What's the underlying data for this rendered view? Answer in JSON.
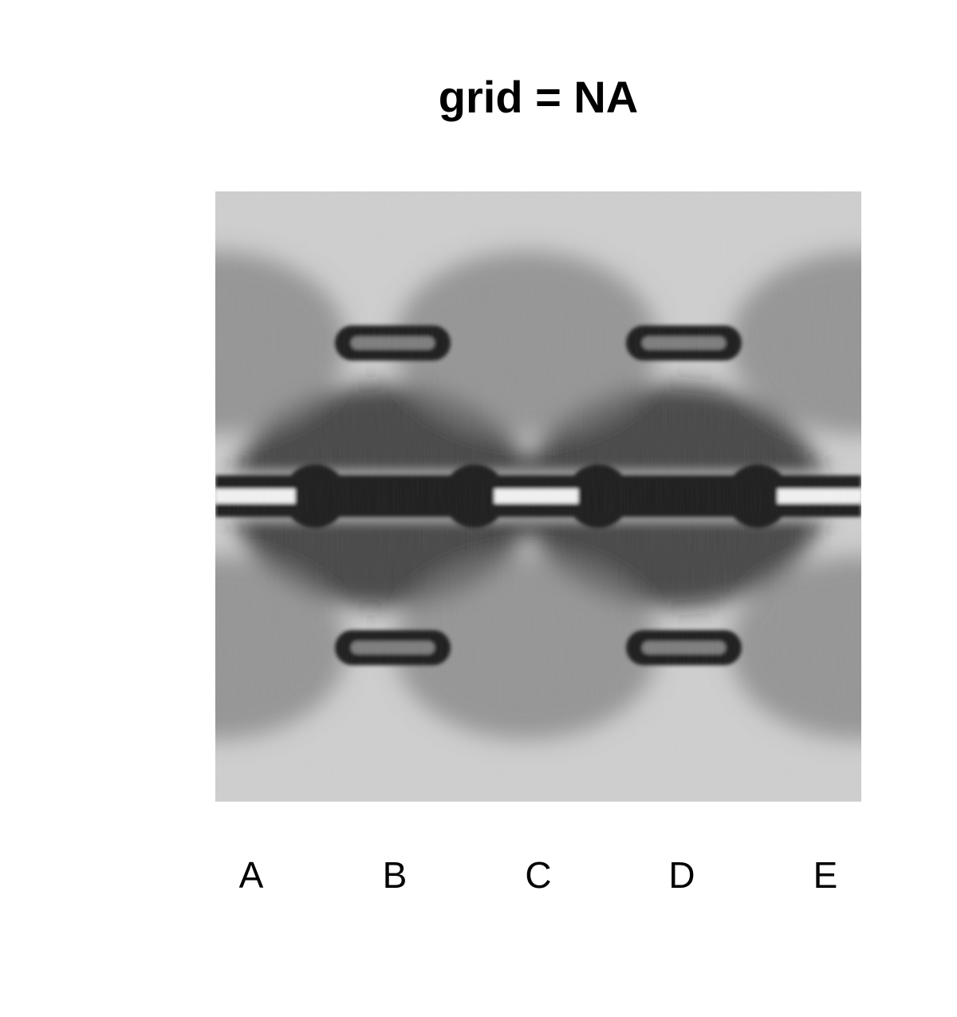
{
  "chart_data": {
    "type": "heatmap",
    "title": "grid = NA",
    "xlabel": "",
    "ylabel": "",
    "categories": [
      "A",
      "B",
      "C",
      "D",
      "E"
    ],
    "colormap": "grayscale",
    "grid": false,
    "legend": "none",
    "colors": {
      "background": "#ffffff",
      "light": "#cfcfcf",
      "mid": "#7d7d7d",
      "dark": "#1c1c1c",
      "highlight": "#f2f2f2"
    }
  }
}
